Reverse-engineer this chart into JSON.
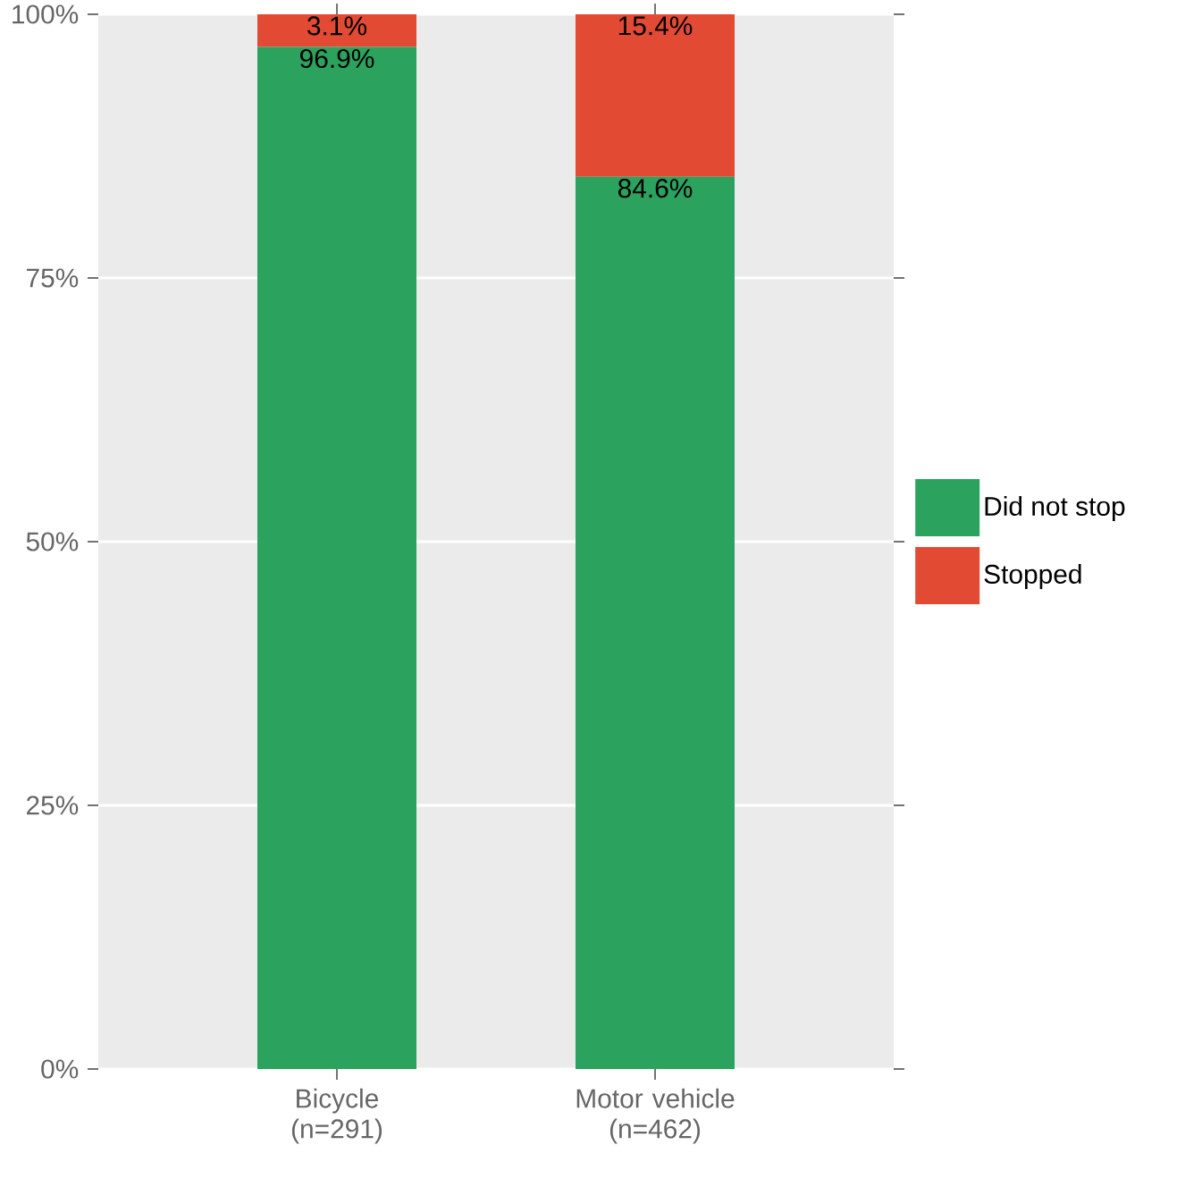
{
  "chart_data": {
    "type": "bar",
    "stacked": true,
    "categories": [
      "Bicycle (n=291)",
      "Motor vehicle (n=462)"
    ],
    "series": [
      {
        "name": "Did not stop",
        "color": "#2ca25f",
        "values": [
          96.9,
          84.6
        ],
        "value_labels": [
          "96.9%",
          "84.6%"
        ]
      },
      {
        "name": "Stopped",
        "color": "#e34a33",
        "values": [
          3.1,
          15.4
        ],
        "value_labels": [
          "3.1%",
          "15.4%"
        ]
      }
    ],
    "ylim": [
      0,
      100
    ],
    "yticks": [
      {
        "value": 0,
        "label": "0%"
      },
      {
        "value": 25,
        "label": "25%"
      },
      {
        "value": 50,
        "label": "50%"
      },
      {
        "value": 75,
        "label": "75%"
      },
      {
        "value": 100,
        "label": "100%"
      }
    ],
    "grid": true,
    "legend": "right"
  }
}
